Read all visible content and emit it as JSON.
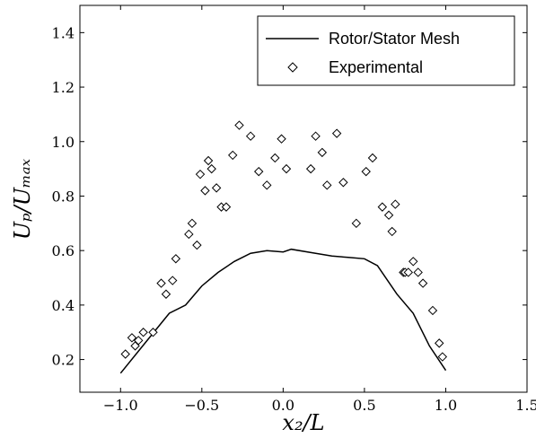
{
  "chart_data": {
    "type": "scatter",
    "title": "",
    "xlabel": "x₂/L",
    "ylabel": "Uₚ/Uₘₐₓ",
    "xlim": [
      -1.25,
      1.5
    ],
    "ylim": [
      0.08,
      1.5
    ],
    "xticks": [
      "−1.0",
      "−0.5",
      "0.0",
      "0.5",
      "1.0",
      "1.5"
    ],
    "xtick_values": [
      -1.0,
      -0.5,
      0.0,
      0.5,
      1.0,
      1.5
    ],
    "yticks": [
      "0.2",
      "0.4",
      "0.6",
      "0.8",
      "1.0",
      "1.2",
      "1.4"
    ],
    "ytick_values": [
      0.2,
      0.4,
      0.6,
      0.8,
      1.0,
      1.2,
      1.4
    ],
    "grid": false,
    "legend_position": "top-right",
    "series": [
      {
        "name": "Rotor/Stator Mesh",
        "style": "line",
        "color": "#000000",
        "x": [
          -1.0,
          -0.85,
          -0.7,
          -0.6,
          -0.5,
          -0.4,
          -0.3,
          -0.2,
          -0.1,
          0.0,
          0.05,
          0.2,
          0.3,
          0.4,
          0.5,
          0.58,
          0.7,
          0.8,
          0.9,
          1.0
        ],
        "y": [
          0.15,
          0.26,
          0.37,
          0.4,
          0.47,
          0.52,
          0.56,
          0.59,
          0.6,
          0.595,
          0.605,
          0.59,
          0.58,
          0.575,
          0.57,
          0.545,
          0.44,
          0.37,
          0.25,
          0.16
        ]
      },
      {
        "name": "Experimental",
        "style": "marker",
        "marker": "diamond",
        "color": "#000000",
        "x": [
          -0.97,
          -0.93,
          -0.91,
          -0.89,
          -0.86,
          -0.8,
          -0.75,
          -0.72,
          -0.68,
          -0.66,
          -0.58,
          -0.56,
          -0.53,
          -0.51,
          -0.48,
          -0.46,
          -0.44,
          -0.41,
          -0.38,
          -0.35,
          -0.31,
          -0.27,
          -0.2,
          -0.15,
          -0.1,
          -0.05,
          -0.01,
          0.02,
          0.17,
          0.2,
          0.24,
          0.27,
          0.33,
          0.37,
          0.45,
          0.51,
          0.55,
          0.61,
          0.65,
          0.67,
          0.69,
          0.74,
          0.75,
          0.77,
          0.8,
          0.83,
          0.86,
          0.92,
          0.96,
          0.98
        ],
        "y": [
          0.22,
          0.28,
          0.25,
          0.27,
          0.3,
          0.3,
          0.48,
          0.44,
          0.49,
          0.57,
          0.66,
          0.7,
          0.62,
          0.88,
          0.82,
          0.93,
          0.9,
          0.83,
          0.76,
          0.76,
          0.95,
          1.06,
          1.02,
          0.89,
          0.84,
          0.94,
          1.01,
          0.9,
          0.9,
          1.02,
          0.96,
          0.84,
          1.03,
          0.85,
          0.7,
          0.89,
          0.94,
          0.76,
          0.73,
          0.67,
          0.77,
          0.52,
          0.52,
          0.52,
          0.56,
          0.52,
          0.48,
          0.38,
          0.26,
          0.21
        ]
      }
    ]
  }
}
